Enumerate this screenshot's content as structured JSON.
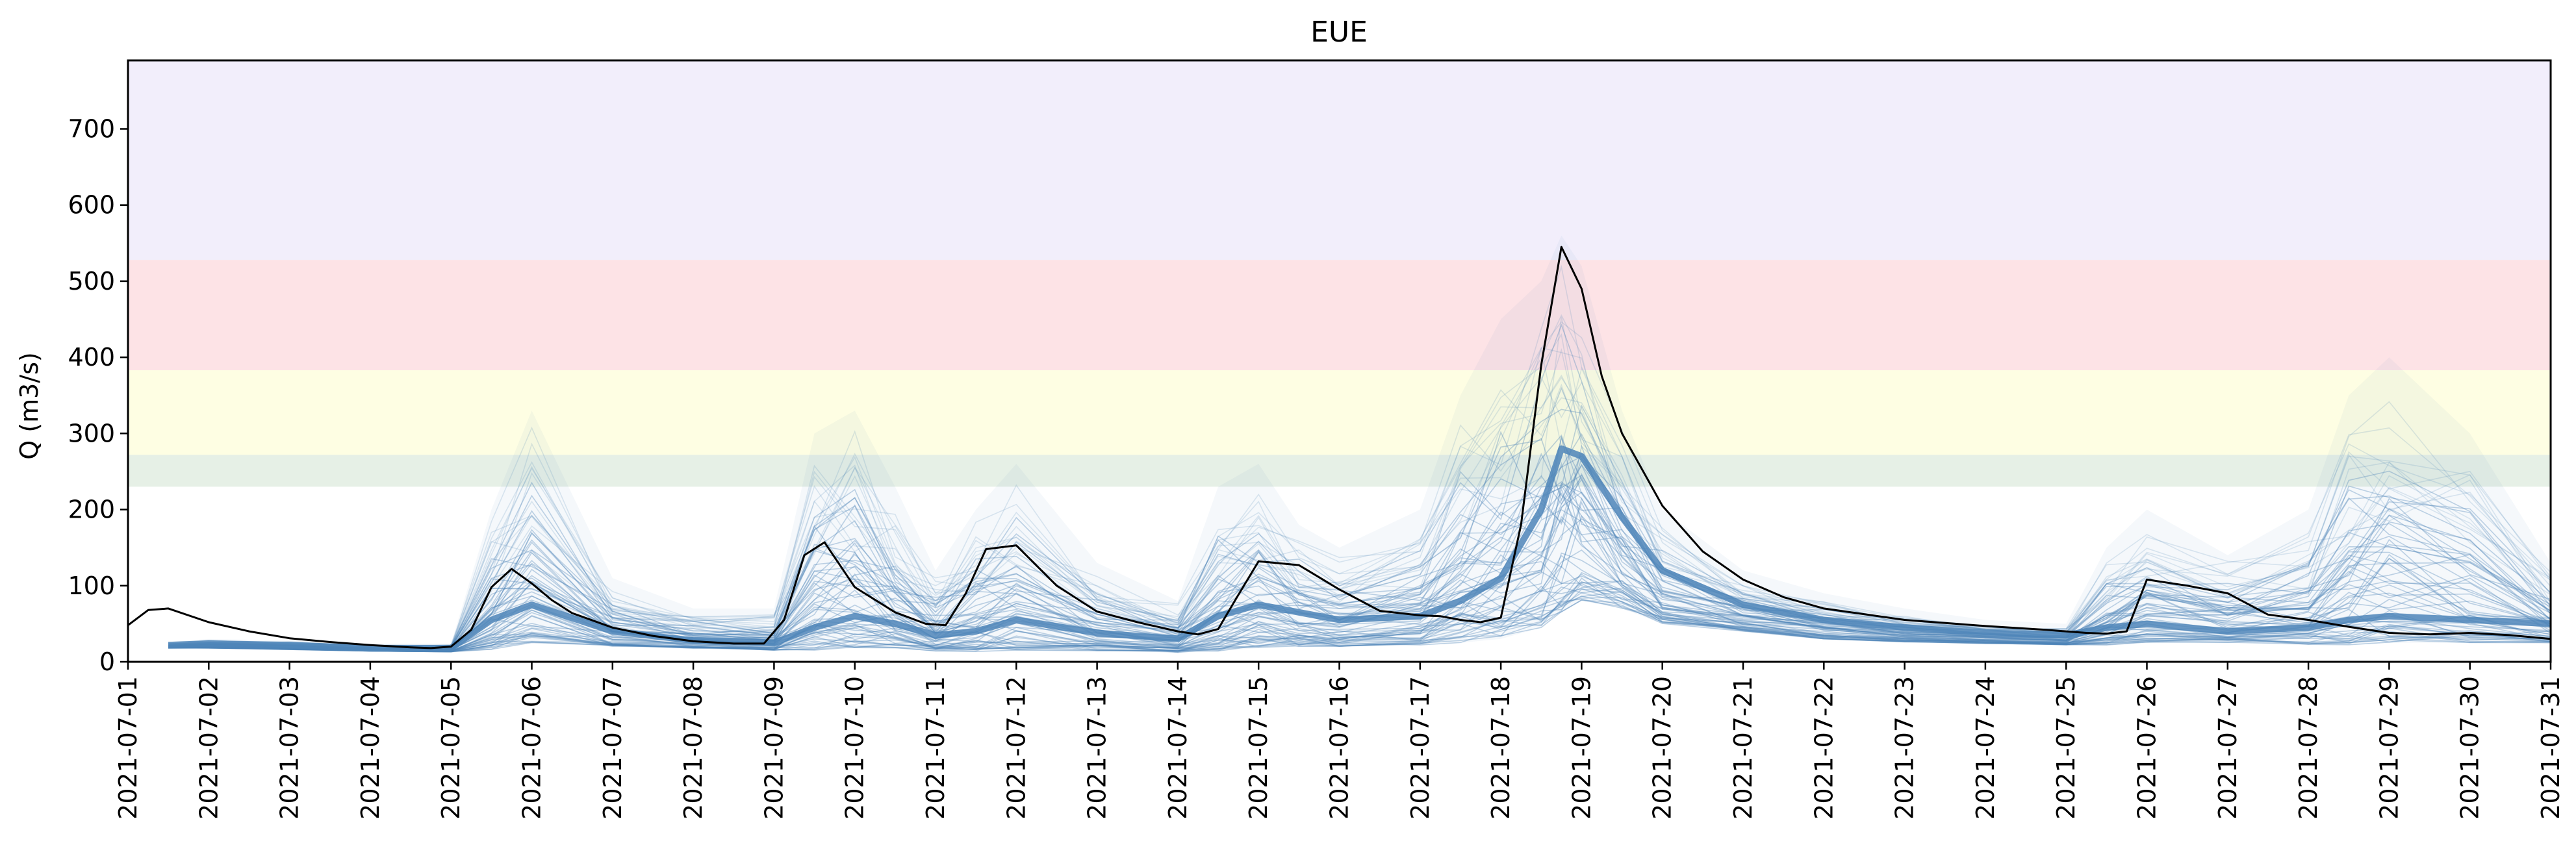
{
  "chart_data": {
    "type": "line",
    "title": "EUE",
    "xlabel": "",
    "ylabel": "Q (m3/s)",
    "xlim": [
      "2021-07-01",
      "2021-07-31"
    ],
    "ylim": [
      0,
      790
    ],
    "x_ticks": [
      "2021-07-01",
      "2021-07-02",
      "2021-07-03",
      "2021-07-04",
      "2021-07-05",
      "2021-07-06",
      "2021-07-07",
      "2021-07-08",
      "2021-07-09",
      "2021-07-10",
      "2021-07-11",
      "2021-07-12",
      "2021-07-13",
      "2021-07-14",
      "2021-07-15",
      "2021-07-16",
      "2021-07-17",
      "2021-07-18",
      "2021-07-19",
      "2021-07-20",
      "2021-07-21",
      "2021-07-22",
      "2021-07-23",
      "2021-07-24",
      "2021-07-25",
      "2021-07-26",
      "2021-07-27",
      "2021-07-28",
      "2021-07-29",
      "2021-07-30",
      "2021-07-31"
    ],
    "y_ticks": [
      0,
      100,
      200,
      300,
      400,
      500,
      600,
      700
    ],
    "grid": false,
    "threshold_bands": [
      {
        "from": 230,
        "to": 272,
        "color": "#e6f0e6"
      },
      {
        "from": 272,
        "to": 383,
        "color": "#fefee3"
      },
      {
        "from": 383,
        "to": 528,
        "color": "#fde3e6"
      },
      {
        "from": 528,
        "to": 790,
        "color": "#f2eefb"
      }
    ],
    "series": [
      {
        "style": "black-line",
        "color": "#000000",
        "x": [
          "2021-07-01 00:00",
          "2021-07-01 06:00",
          "2021-07-01 12:00",
          "2021-07-02 00:00",
          "2021-07-02 12:00",
          "2021-07-03 00:00",
          "2021-07-03 12:00",
          "2021-07-04 00:00",
          "2021-07-04 12:00",
          "2021-07-04 18:00",
          "2021-07-05 00:00",
          "2021-07-05 06:00",
          "2021-07-05 12:00",
          "2021-07-05 18:00",
          "2021-07-06 00:00",
          "2021-07-06 06:00",
          "2021-07-06 12:00",
          "2021-07-07 00:00",
          "2021-07-07 12:00",
          "2021-07-08 00:00",
          "2021-07-08 12:00",
          "2021-07-08 21:00",
          "2021-07-09 03:00",
          "2021-07-09 09:00",
          "2021-07-09 15:00",
          "2021-07-10 00:00",
          "2021-07-10 12:00",
          "2021-07-10 21:00",
          "2021-07-11 03:00",
          "2021-07-11 09:00",
          "2021-07-11 15:00",
          "2021-07-12 00:00",
          "2021-07-12 12:00",
          "2021-07-13 00:00",
          "2021-07-13 12:00",
          "2021-07-13 18:00",
          "2021-07-14 00:00",
          "2021-07-14 06:00",
          "2021-07-14 12:00",
          "2021-07-14 18:00",
          "2021-07-15 00:00",
          "2021-07-15 12:00",
          "2021-07-16 00:00",
          "2021-07-16 12:00",
          "2021-07-17 00:00",
          "2021-07-17 06:00",
          "2021-07-17 12:00",
          "2021-07-17 18:00",
          "2021-07-18 00:00",
          "2021-07-18 06:00",
          "2021-07-18 12:00",
          "2021-07-18 18:00",
          "2021-07-19 00:00",
          "2021-07-19 06:00",
          "2021-07-19 12:00",
          "2021-07-20 00:00",
          "2021-07-20 12:00",
          "2021-07-21 00:00",
          "2021-07-21 12:00",
          "2021-07-22 00:00",
          "2021-07-23 00:00",
          "2021-07-24 00:00",
          "2021-07-24 18:00",
          "2021-07-25 06:00",
          "2021-07-25 12:00",
          "2021-07-25 18:00",
          "2021-07-26 00:00",
          "2021-07-26 12:00",
          "2021-07-27 00:00",
          "2021-07-27 12:00",
          "2021-07-28 00:00",
          "2021-07-28 12:00",
          "2021-07-29 00:00",
          "2021-07-29 12:00",
          "2021-07-30 00:00",
          "2021-07-30 12:00",
          "2021-07-31 00:00"
        ],
        "values": [
          48,
          68,
          70,
          52,
          40,
          31,
          26,
          22,
          19,
          18,
          20,
          42,
          98,
          122,
          103,
          81,
          64,
          45,
          34,
          27,
          24,
          24,
          55,
          140,
          157,
          98,
          65,
          50,
          48,
          90,
          148,
          153,
          100,
          66,
          52,
          46,
          40,
          36,
          43,
          88,
          132,
          127,
          95,
          67,
          61,
          60,
          55,
          52,
          58,
          180,
          390,
          545,
          490,
          375,
          300,
          205,
          145,
          108,
          85,
          70,
          55,
          47,
          42,
          38,
          37,
          40,
          108,
          100,
          90,
          62,
          55,
          46,
          38,
          36,
          38,
          35,
          30
        ]
      },
      {
        "style": "ensemble",
        "color": "#4e85b8",
        "x": [
          "2021-07-01 12:00",
          "2021-07-02 00:00",
          "2021-07-03 00:00",
          "2021-07-04 00:00",
          "2021-07-05 00:00",
          "2021-07-05 12:00",
          "2021-07-06 00:00",
          "2021-07-07 00:00",
          "2021-07-08 00:00",
          "2021-07-09 00:00",
          "2021-07-09 12:00",
          "2021-07-10 00:00",
          "2021-07-10 12:00",
          "2021-07-11 00:00",
          "2021-07-11 12:00",
          "2021-07-12 00:00",
          "2021-07-13 00:00",
          "2021-07-14 00:00",
          "2021-07-14 12:00",
          "2021-07-15 00:00",
          "2021-07-15 12:00",
          "2021-07-16 00:00",
          "2021-07-17 00:00",
          "2021-07-17 12:00",
          "2021-07-18 00:00",
          "2021-07-18 12:00",
          "2021-07-18 18:00",
          "2021-07-19 00:00",
          "2021-07-19 12:00",
          "2021-07-20 00:00",
          "2021-07-21 00:00",
          "2021-07-22 00:00",
          "2021-07-23 00:00",
          "2021-07-24 00:00",
          "2021-07-25 00:00",
          "2021-07-25 12:00",
          "2021-07-26 00:00",
          "2021-07-27 00:00",
          "2021-07-28 00:00",
          "2021-07-28 12:00",
          "2021-07-29 00:00",
          "2021-07-30 00:00",
          "2021-07-31 00:00"
        ],
        "median": [
          22,
          24,
          22,
          18,
          18,
          55,
          75,
          40,
          28,
          25,
          45,
          60,
          50,
          35,
          40,
          55,
          38,
          30,
          60,
          75,
          65,
          55,
          60,
          80,
          110,
          200,
          280,
          270,
          190,
          120,
          75,
          55,
          45,
          38,
          35,
          45,
          50,
          40,
          45,
          55,
          60,
          55,
          50
        ],
        "upper": [
          26,
          30,
          28,
          24,
          24,
          200,
          330,
          110,
          70,
          70,
          300,
          330,
          230,
          120,
          200,
          260,
          130,
          80,
          230,
          260,
          180,
          150,
          200,
          350,
          450,
          500,
          560,
          520,
          330,
          200,
          120,
          90,
          70,
          55,
          50,
          150,
          200,
          140,
          200,
          350,
          400,
          300,
          130
        ],
        "lower": [
          18,
          18,
          16,
          14,
          13,
          16,
          25,
          20,
          17,
          15,
          15,
          18,
          18,
          14,
          13,
          15,
          14,
          12,
          14,
          18,
          20,
          20,
          22,
          25,
          30,
          45,
          65,
          80,
          70,
          50,
          40,
          30,
          26,
          24,
          22,
          22,
          25,
          25,
          22,
          22,
          25,
          25,
          25
        ]
      }
    ]
  }
}
